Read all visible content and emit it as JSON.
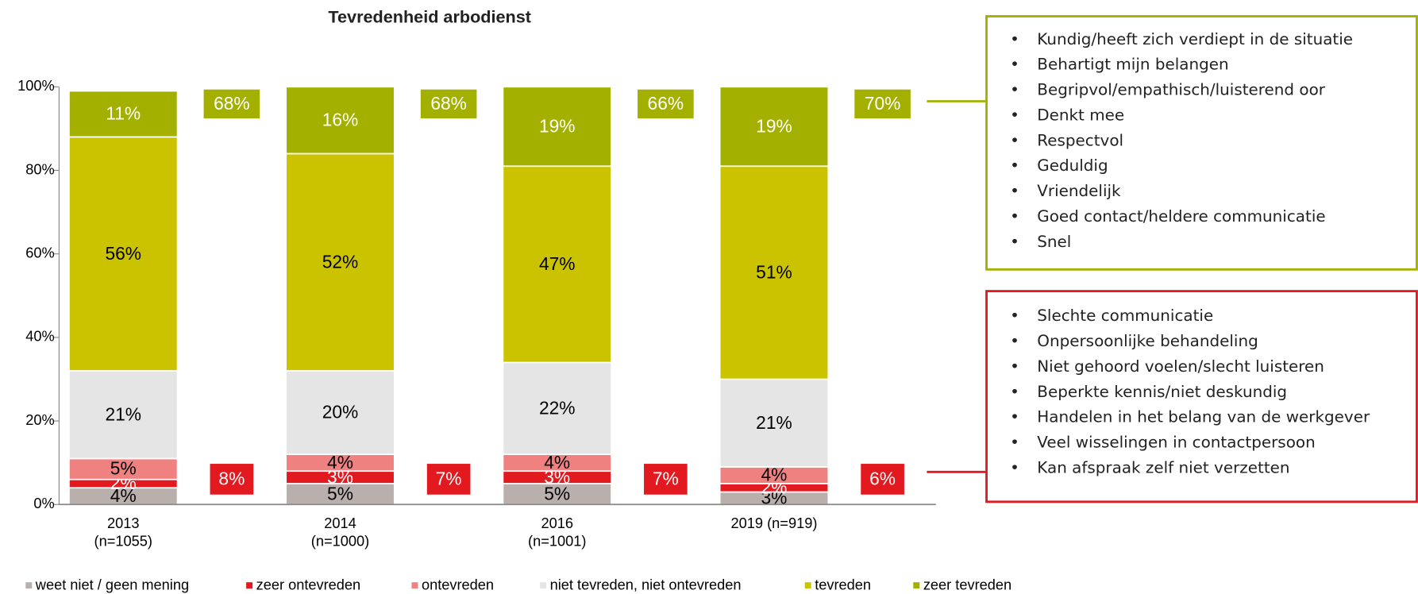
{
  "chart_data": {
    "type": "stacked_bar",
    "title": "Tevredenheid arbodienst",
    "categories": [
      "2013\n(n=1055)",
      "2014\n(n=1000)",
      "2016\n(n=1001)",
      "2019 (n=919)"
    ],
    "ylim": [
      0,
      100
    ],
    "yticks": [
      {
        "value": 0,
        "label": "0%"
      },
      {
        "value": 20,
        "label": "20%"
      },
      {
        "value": 40,
        "label": "40%"
      },
      {
        "value": 60,
        "label": "60%"
      },
      {
        "value": 80,
        "label": "80%"
      },
      {
        "value": 100,
        "label": "100%"
      }
    ],
    "series": [
      {
        "name": "weet niet / geen mening",
        "color": "#b9b0ad",
        "label_color": "#000000",
        "values": [
          4,
          5,
          5,
          3
        ],
        "value_labels": [
          "4%",
          "5%",
          "5%",
          "3%"
        ]
      },
      {
        "name": "zeer ontevreden",
        "color": "#e2191f",
        "label_color": "#ffffff",
        "values": [
          2,
          3,
          3,
          2
        ],
        "value_labels": [
          "2%",
          "3%",
          "3%",
          "2%"
        ]
      },
      {
        "name": "ontevreden",
        "color": "#f08181",
        "label_color": "#000000",
        "values": [
          5,
          4,
          4,
          4
        ],
        "value_labels": [
          "5%",
          "4%",
          "4%",
          "4%"
        ]
      },
      {
        "name": "niet tevreden, niet ontevreden",
        "color": "#e6e5e5",
        "label_color": "#000000",
        "values": [
          21,
          20,
          22,
          21
        ],
        "value_labels": [
          "21%",
          "20%",
          "22%",
          "21%"
        ]
      },
      {
        "name": "tevreden",
        "color": "#cbc300",
        "label_color": "#000000",
        "values": [
          56,
          52,
          47,
          51
        ],
        "value_labels": [
          "56%",
          "52%",
          "47%",
          "51%"
        ]
      },
      {
        "name": "zeer tevreden",
        "color": "#a3b000",
        "label_color": "#ffffff",
        "values": [
          11,
          16,
          19,
          19
        ],
        "value_labels": [
          "11%",
          "16%",
          "19%",
          "19%"
        ]
      }
    ],
    "totals": [
      {
        "color": "#a3b000",
        "values": [
          68,
          68,
          66,
          70
        ],
        "value_labels": [
          "68%",
          "68%",
          "66%",
          "70%"
        ]
      },
      {
        "color": "#e2191f",
        "values": [
          8,
          7,
          7,
          6
        ],
        "value_labels": [
          "8%",
          "7%",
          "7%",
          "6%"
        ]
      }
    ],
    "positive_reasons": [
      "Kundig/heeft zich verdiept in de situatie",
      "Behartigt mijn belangen",
      "Begripvol/empathisch/luisterend oor",
      "Denkt mee",
      "Respectvol",
      "Geduldig",
      "Vriendelijk",
      "Goed contact/heldere communicatie",
      "Snel"
    ],
    "negative_reasons": [
      "Slechte communicatie",
      "Onpersoonlijke behandeling",
      "Niet gehoord voelen/slecht luisteren",
      "Beperkte kennis/niet deskundig",
      "Handelen in het belang van de werkgever",
      "Veel wisselingen in contactpersoon",
      "Kan afspraak zelf niet verzetten"
    ]
  }
}
